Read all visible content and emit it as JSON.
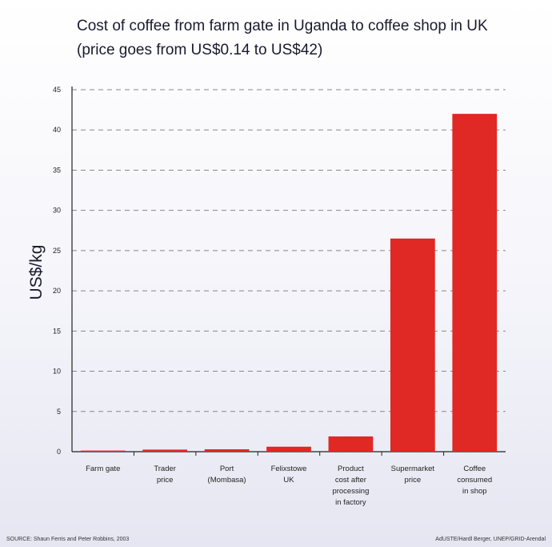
{
  "title_lines": [
    "Cost of coffee from farm gate in Uganda to coffee shop in UK",
    "(price goes from US$0.14 to US$42)"
  ],
  "colors": {
    "bar": "#e02824",
    "axis": "#222222",
    "grid": "#888888"
  },
  "chart_data": {
    "type": "bar",
    "title": "Cost of coffee from farm gate in Uganda to coffee shop in UK",
    "subtitle": "(price goes from US$0.14 to US$42)",
    "xlabel": "",
    "ylabel": "US$/kg",
    "ylim": [
      0,
      45
    ],
    "yticks": [
      0,
      5,
      10,
      15,
      20,
      25,
      30,
      35,
      40,
      45
    ],
    "grid": true,
    "categories": [
      [
        "Farm gate"
      ],
      [
        "Trader",
        "price"
      ],
      [
        "Port",
        "(Mombasa)"
      ],
      [
        "Felixstowe",
        "UK"
      ],
      [
        "Product",
        "cost after",
        "processing",
        "in factory"
      ],
      [
        "Supermarket",
        "price"
      ],
      [
        "Coffee",
        "consumed",
        "in shop"
      ]
    ],
    "values": [
      0.14,
      0.26,
      0.3,
      0.62,
      1.9,
      26.5,
      42
    ]
  },
  "source": "SOURCE: Shaun Ferris and Peter Robbins, 2003",
  "credit": "AdUSTE/Hardl Berger, UNEP/GRID-Arendal"
}
